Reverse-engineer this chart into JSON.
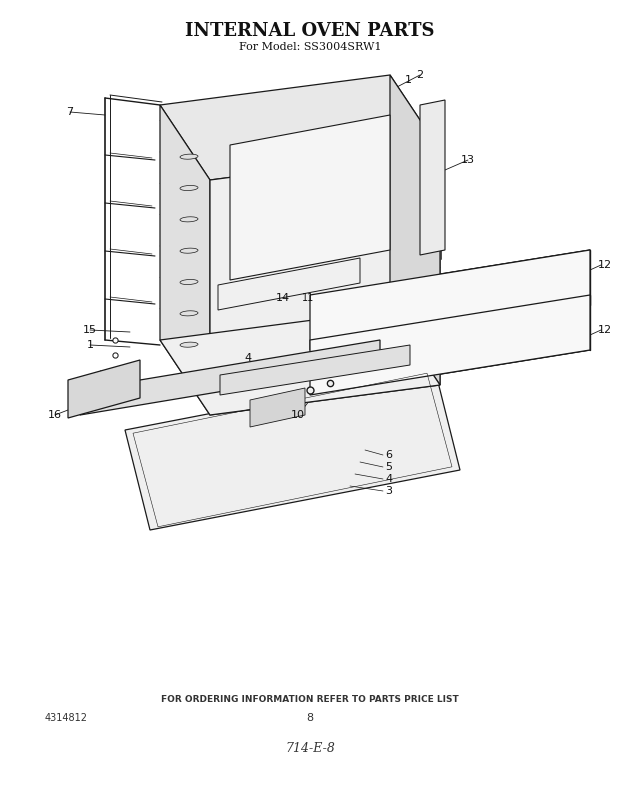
{
  "title": "INTERNAL OVEN PARTS",
  "subtitle": "For Model: SS3004SRW1",
  "footer_text": "FOR ORDERING INFORMATION REFER TO PARTS PRICE LIST",
  "part_number": "4314812",
  "page_number": "8",
  "handwritten": "714-E-8",
  "bg_color": "#ffffff",
  "line_color": "#1a1a1a",
  "lw_main": 0.9,
  "lw_inner": 0.55,
  "title_fontsize": 13,
  "subtitle_fontsize": 8,
  "footer_fontsize": 6.5,
  "label_fontsize": 8
}
